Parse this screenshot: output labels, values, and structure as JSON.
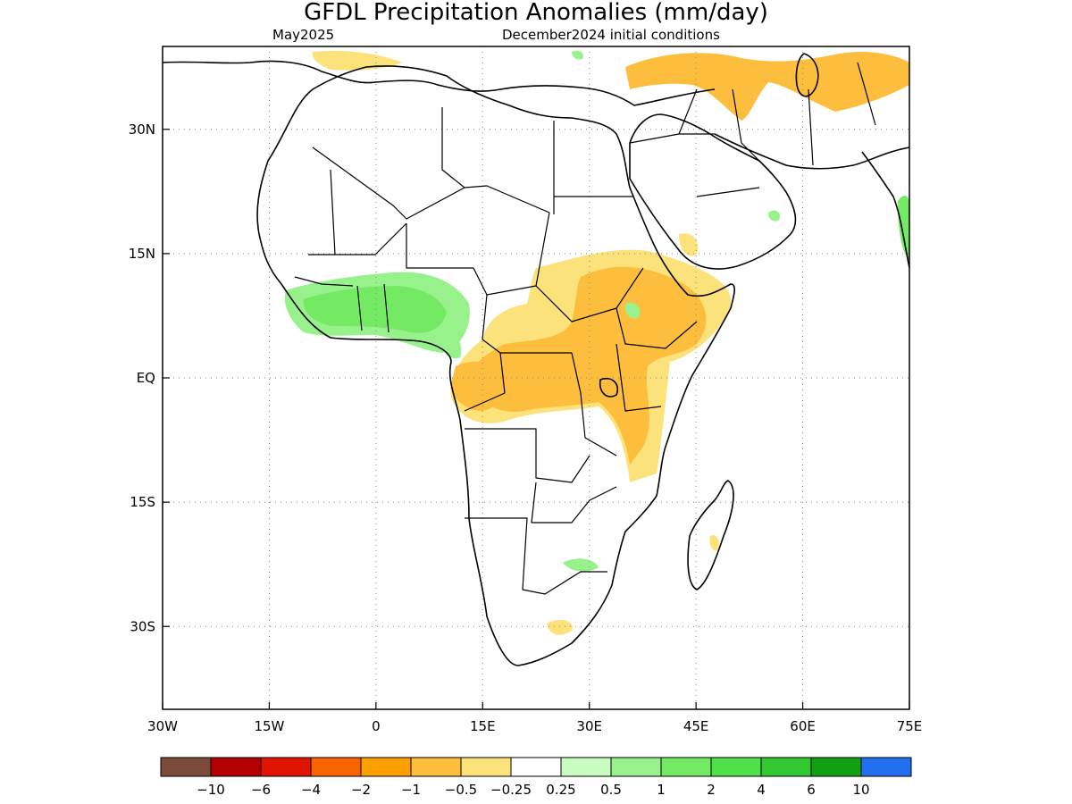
{
  "title": "GFDL Precipitation Anomalies (mm/day)",
  "subtitle_left": "May2025",
  "subtitle_right": "December2024 initial conditions",
  "map": {
    "lon_range": [
      -30,
      75
    ],
    "lat_range": [
      -40,
      40
    ],
    "lon_ticks": [
      "30W",
      "15W",
      "0",
      "15E",
      "30E",
      "45E",
      "60E",
      "75E"
    ],
    "lat_ticks": [
      "30N",
      "15N",
      "EQ",
      "15S",
      "30S"
    ],
    "grid": "dotted"
  },
  "colorbar": {
    "colors": [
      "#7b4a3b",
      "#b40000",
      "#e01400",
      "#fa6400",
      "#fca000",
      "#fcbe3c",
      "#fce27a",
      "#ffffff",
      "#c8fcc0",
      "#98f28c",
      "#74ea64",
      "#4fe04a",
      "#32c832",
      "#12a012",
      "#2070f0"
    ],
    "labels": [
      "−10",
      "−6",
      "−4",
      "−2",
      "−1",
      "−0.5",
      "−0.25",
      "0.25",
      "0.5",
      "1",
      "2",
      "4",
      "6",
      "10"
    ]
  },
  "palette": {
    "dry_strong": "#fcbe3c",
    "dry_weak": "#fce27a",
    "wet_weak": "#98f28c",
    "wet_mid": "#74ea64",
    "wet_strong": "#4fe04a"
  }
}
